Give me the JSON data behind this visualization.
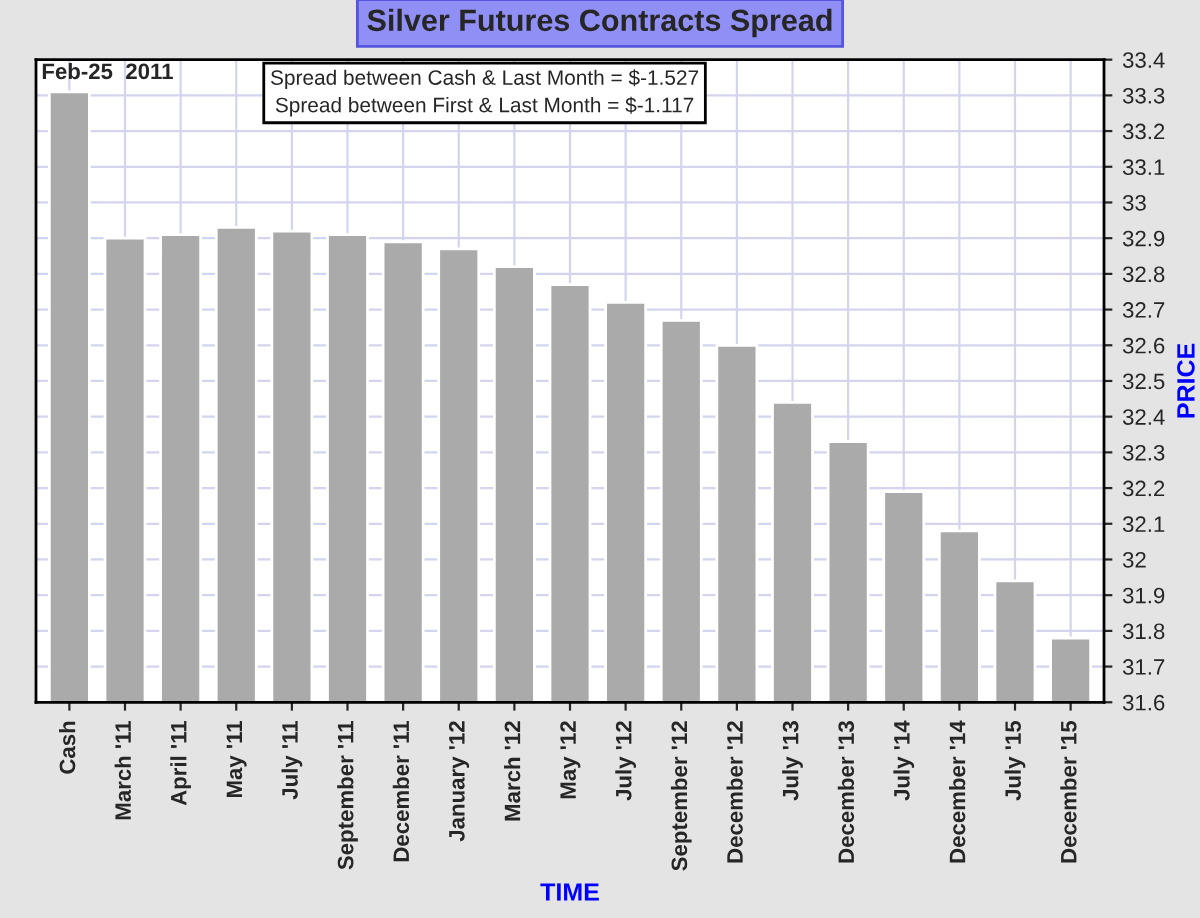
{
  "chart_data": {
    "type": "bar",
    "title": "Silver Futures Contracts Spread",
    "xlabel": "TIME",
    "ylabel": "PRICE",
    "categories": [
      "Cash",
      "March '11",
      "April '11",
      "May '11",
      "July '11",
      "September '11",
      "December '11",
      "January '12",
      "March '12",
      "May '12",
      "July '12",
      "September '12",
      "December '12",
      "July '13",
      "December '13",
      "July '14",
      "December '14",
      "July '15",
      "December '15"
    ],
    "values": [
      33.31,
      32.9,
      32.91,
      32.93,
      32.92,
      32.91,
      32.89,
      32.87,
      32.82,
      32.77,
      32.72,
      32.67,
      32.6,
      32.44,
      32.33,
      32.19,
      32.08,
      31.94,
      31.78
    ],
    "color": "#aaaaaa",
    "ylim": [
      31.6,
      33.4
    ],
    "yticks": [
      31.6,
      31.7,
      31.8,
      31.9,
      32,
      32.1,
      32.2,
      32.3,
      32.4,
      32.5,
      32.6,
      32.7,
      32.8,
      32.9,
      33,
      33.1,
      33.2,
      33.3,
      33.4
    ],
    "grid": true,
    "annotations": [
      "Feb-25  2011",
      "Spread between Cash & Last Month = $-1.527\nSpread between First & Last Month = $-1.117"
    ]
  }
}
